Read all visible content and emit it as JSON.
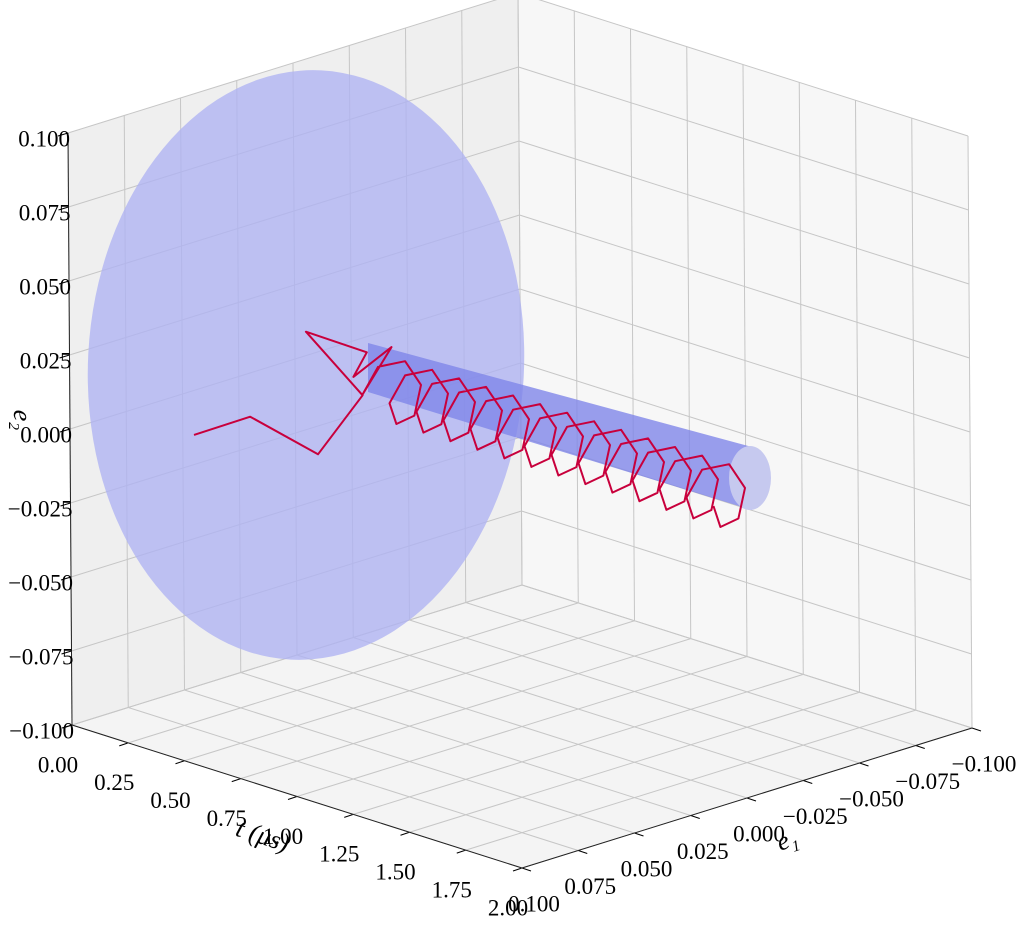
{
  "chart_data": {
    "type": "line3d",
    "xlabel": "t (μs)",
    "ylabel": "e₁",
    "zlabel": "e₂",
    "xlim": [
      0,
      2
    ],
    "ylim": [
      -0.1,
      0.1
    ],
    "zlim": [
      -0.1,
      0.1
    ],
    "xticks": [
      {
        "value": 0,
        "label": "0.00"
      },
      0.25,
      {
        "value": 0.5,
        "label": "0.50"
      },
      0.75,
      {
        "value": 1,
        "label": "1.00"
      },
      1.25,
      {
        "value": 1.5,
        "label": "1.50"
      },
      1.75,
      {
        "value": 2,
        "label": "2.00"
      }
    ],
    "yticks": [
      {
        "value": -0.1,
        "label": "−0.100"
      },
      {
        "value": -0.075,
        "label": "−0.075"
      },
      {
        "value": -0.05,
        "label": "−0.050"
      },
      {
        "value": -0.025,
        "label": "−0.025"
      },
      {
        "value": 0,
        "label": "0.000"
      },
      0.025,
      {
        "value": 0.05,
        "label": "0.050"
      },
      0.075,
      {
        "value": 0.1,
        "label": "0.100"
      }
    ],
    "zticks": [
      {
        "value": -0.1,
        "label": "−0.100"
      },
      {
        "value": -0.075,
        "label": "−0.075"
      },
      {
        "value": -0.05,
        "label": "−0.050"
      },
      {
        "value": -0.025,
        "label": "−0.025"
      },
      {
        "value": 0,
        "label": "0.000"
      },
      0.025,
      {
        "value": 0.05,
        "label": "0.050"
      },
      0.075,
      {
        "value": 0.1,
        "label": "0.100"
      }
    ],
    "grid": true,
    "series": [
      {
        "color": "#c8003c",
        "x": [
          0,
          0.1,
          0.2,
          0.3,
          0.25,
          0.32,
          0.36,
          0.38,
          0.4,
          0.42,
          0.44,
          0.46,
          0.48,
          0.5,
          0.52,
          0.54,
          0.56,
          0.58,
          0.6,
          0.62,
          0.64,
          0.66,
          0.68,
          0.7,
          0.72,
          0.74,
          0.76,
          0.78,
          0.8,
          0.82,
          0.84,
          0.86,
          0.88,
          0.9,
          0.92,
          0.94,
          0.96,
          0.98,
          1.0,
          1.02,
          1.04,
          1.06,
          1.08,
          1.1,
          1.12,
          1.14,
          1.16,
          1.18,
          1.2,
          1.22,
          1.24,
          1.26,
          1.28,
          1.3,
          1.32,
          1.34,
          1.36,
          1.38,
          1.4,
          1.42,
          1.44,
          1.46,
          1.48,
          1.5,
          1.52,
          1.54,
          1.56,
          1.58,
          1.6,
          1.62,
          1.64,
          1.66,
          1.68,
          1.7,
          1.72,
          1.74,
          1.76,
          1.78,
          1.8,
          1.82,
          1.84,
          1.86,
          1.88,
          1.9,
          1.92,
          1.94,
          1.96
        ],
        "y": [
          0.045,
          0.03,
          0.01,
          0,
          0.02,
          0,
          0.01,
          -0.005,
          0.01,
          0.005,
          -0.005,
          -0.01,
          -0.005,
          0.005,
          0.01,
          0.005,
          -0.005,
          -0.01,
          -0.005,
          0.005,
          0.01,
          0.005,
          -0.005,
          -0.01,
          -0.005,
          0.005,
          0.01,
          0.005,
          -0.005,
          -0.01,
          -0.005,
          0.005,
          0.01,
          0.005,
          -0.005,
          -0.01,
          -0.005,
          0.005,
          0.01,
          0.005,
          -0.005,
          -0.01,
          -0.005,
          0.005,
          0.01,
          0.005,
          -0.005,
          -0.01,
          -0.005,
          0.005,
          0.01,
          0.005,
          -0.005,
          -0.01,
          -0.005,
          0.005,
          0.01,
          0.005,
          -0.005,
          -0.01,
          -0.005,
          0.005,
          0.01,
          0.005,
          -0.005,
          -0.01,
          -0.005,
          0.005,
          0.01,
          0.005,
          -0.005,
          -0.01,
          -0.005,
          0.005,
          0.01,
          0.005,
          -0.005,
          -0.01,
          -0.005,
          0.005,
          0.01,
          0.005,
          -0.005,
          -0.01,
          -0.005,
          0.005,
          0.01
        ],
        "z": [
          -0.015,
          -0.01,
          -0.025,
          -0.005,
          0.02,
          0.01,
          0.005,
          0.012,
          0,
          0.0087,
          0.0087,
          0,
          -0.0087,
          -0.0087,
          0,
          0.0087,
          0.0087,
          0,
          -0.0087,
          -0.0087,
          0,
          0.0087,
          0.0087,
          0,
          -0.0087,
          -0.0087,
          0,
          0.0087,
          0.0087,
          0,
          -0.0087,
          -0.0087,
          0,
          0.0087,
          0.0087,
          0,
          -0.0087,
          -0.0087,
          0,
          0.0087,
          0.0087,
          0,
          -0.0087,
          -0.0087,
          0,
          0.0087,
          0.0087,
          0,
          -0.0087,
          -0.0087,
          0,
          0.0087,
          0.0087,
          0,
          -0.0087,
          -0.0087,
          0,
          0.0087,
          0.0087,
          0,
          -0.0087,
          -0.0087,
          0,
          0.0087,
          0.0087,
          0,
          -0.0087,
          -0.0087,
          0,
          0.0087,
          0.0087,
          0,
          -0.0087,
          -0.0087,
          0,
          0.0087,
          0.0087,
          0,
          -0.0087,
          -0.0087,
          0,
          0.0087,
          0.0087,
          0,
          -0.0087,
          -0.0087,
          0
        ]
      }
    ]
  }
}
